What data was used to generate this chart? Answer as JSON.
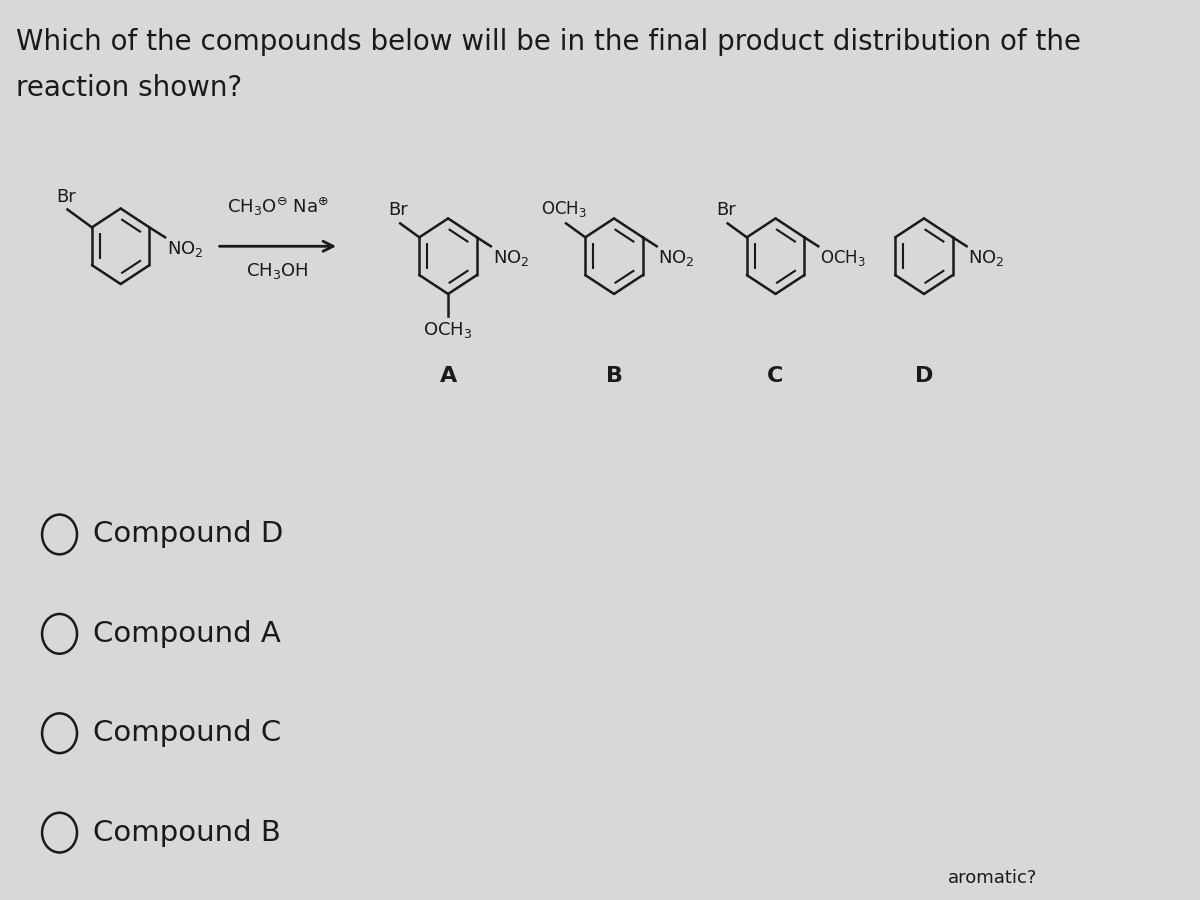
{
  "title_line1": "Which of the compounds below will be in the final product distribution of the",
  "title_line2": "reaction shown?",
  "bg_color": "#d8d8d8",
  "text_color": "#1a1a1a",
  "options": [
    "Compound D",
    "Compound A",
    "Compound C",
    "Compound B"
  ],
  "font_size_title": 20,
  "font_size_option": 21,
  "font_size_chem": 13,
  "font_size_label": 16
}
